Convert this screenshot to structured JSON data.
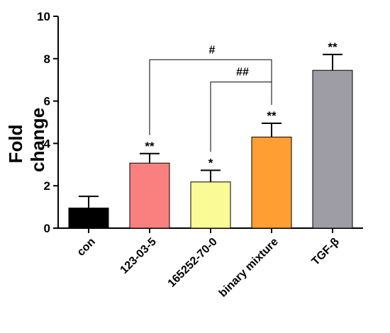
{
  "chart_data": {
    "type": "bar",
    "title": "",
    "xlabel": "",
    "ylabel": "Fold change",
    "ylim": [
      0,
      10
    ],
    "yticks": [
      0,
      2,
      4,
      6,
      8,
      10
    ],
    "grid": false,
    "categories": [
      "con",
      "123-03-5",
      "165252-70-0",
      "binary mixture",
      "TGF-β"
    ],
    "values": [
      0.95,
      3.07,
      2.18,
      4.3,
      7.45
    ],
    "errors": [
      0.55,
      0.45,
      0.55,
      0.65,
      0.75
    ],
    "colors": [
      "#000000",
      "#fa8080",
      "#fafa96",
      "#ff9f33",
      "#9e9da5"
    ],
    "significance": [
      "",
      "**",
      "*",
      "**",
      "**"
    ],
    "comparisons": [
      {
        "from": "123-03-5",
        "to": "binary mixture",
        "label": "#",
        "y": 7.95
      },
      {
        "from": "165252-70-0",
        "to": "binary mixture",
        "label": "##",
        "y": 6.9
      }
    ]
  }
}
